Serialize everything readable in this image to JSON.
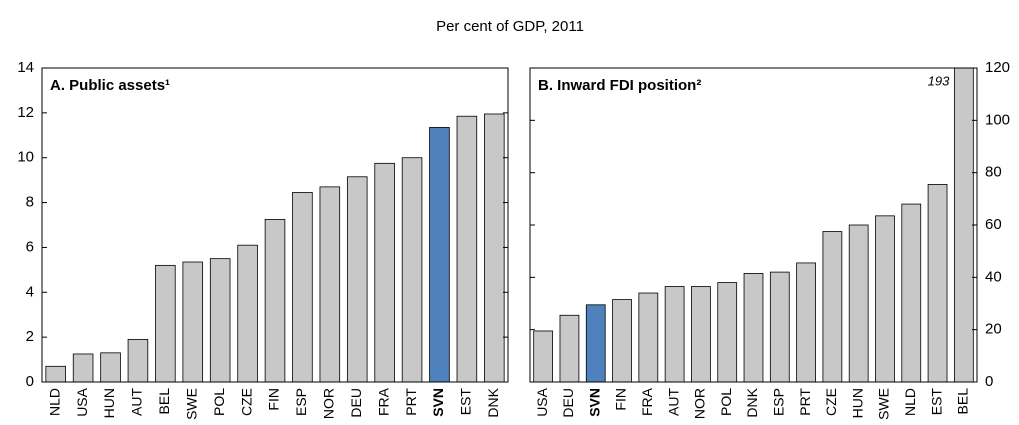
{
  "title": "Per cent of GDP, 2011",
  "chart_data": [
    {
      "type": "bar",
      "title": "A. Public assets¹",
      "categories": [
        "NLD",
        "USA",
        "HUN",
        "AUT",
        "BEL",
        "SWE",
        "POL",
        "CZE",
        "FIN",
        "ESP",
        "NOR",
        "DEU",
        "FRA",
        "PRT",
        "SVN",
        "EST",
        "DNK"
      ],
      "values": [
        0.7,
        1.25,
        1.3,
        1.9,
        5.2,
        5.35,
        5.5,
        6.1,
        7.25,
        8.45,
        8.7,
        9.15,
        9.75,
        10.0,
        11.35,
        11.85,
        11.95
      ],
      "color": "#c8c8c8",
      "highlight": "SVN",
      "highlight_color": "#4f81bd",
      "ylim": [
        0,
        14
      ],
      "yticks": [
        0,
        2,
        4,
        6,
        8,
        10,
        12,
        14
      ],
      "y_axis_side": "left",
      "grid": false
    },
    {
      "type": "bar",
      "title": "B. Inward FDI position²",
      "categories": [
        "USA",
        "DEU",
        "SVN",
        "FIN",
        "FRA",
        "AUT",
        "NOR",
        "POL",
        "DNK",
        "ESP",
        "PRT",
        "CZE",
        "HUN",
        "SWE",
        "NLD",
        "EST",
        "BEL"
      ],
      "values": [
        19.5,
        25.5,
        29.5,
        31.5,
        34,
        36.5,
        36.5,
        38,
        41.5,
        42,
        45.5,
        57.5,
        60,
        63.5,
        68,
        75.5,
        193
      ],
      "value_labels": [
        null,
        null,
        null,
        null,
        null,
        null,
        null,
        null,
        null,
        null,
        null,
        null,
        null,
        null,
        null,
        null,
        "193"
      ],
      "color": "#c8c8c8",
      "highlight": "SVN",
      "highlight_color": "#4f81bd",
      "ylim": [
        0,
        120
      ],
      "yticks": [
        0,
        20,
        40,
        60,
        80,
        100,
        120
      ],
      "y_axis_side": "right",
      "grid": false
    }
  ]
}
